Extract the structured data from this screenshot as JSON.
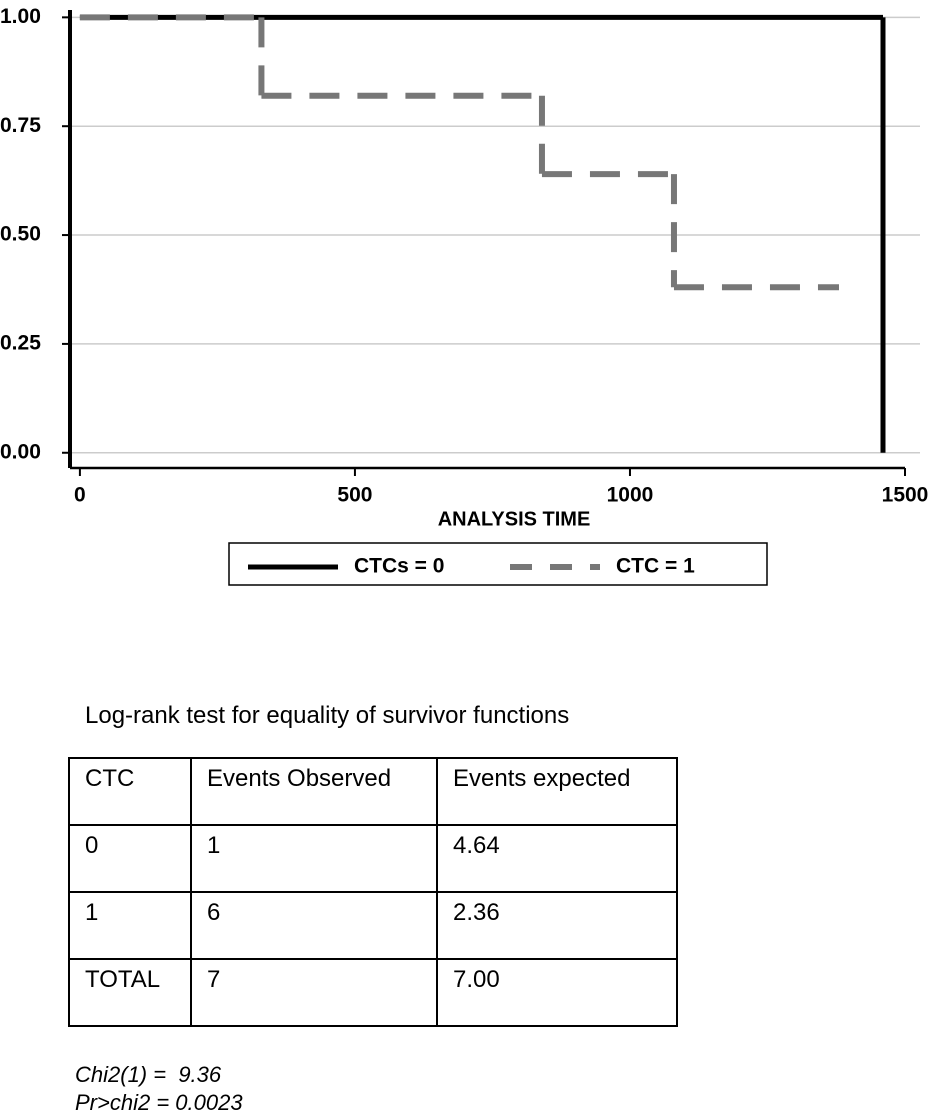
{
  "chart_data": {
    "type": "step",
    "x_label": "ANALYSIS TIME",
    "xlim": [
      -18,
      1500
    ],
    "xticks": [
      0,
      500,
      1000,
      1500
    ],
    "ylim": [
      -0.035,
      1.01
    ],
    "yticks": [
      {
        "value": 0,
        "label": "0.00"
      },
      {
        "value": 0.25,
        "label": "0.25"
      },
      {
        "value": 0.5,
        "label": "0.50"
      },
      {
        "value": 0.75,
        "label": "0.75"
      },
      {
        "value": 1,
        "label": "1.00"
      }
    ],
    "grid": true,
    "series": [
      {
        "name": "CTCs = 0",
        "color": "#000000",
        "line_style": "solid",
        "x": [
          0,
          1460
        ],
        "values": [
          1,
          0
        ]
      },
      {
        "name": "CTC = 1",
        "color": "#777777",
        "line_style": "dashed",
        "x": [
          0,
          330,
          840,
          1080,
          1380
        ],
        "values": [
          1,
          0.82,
          0.64,
          0.38,
          0.38
        ]
      }
    ]
  },
  "table": {
    "title": "Log-rank test for equality of survivor functions",
    "header": [
      "CTC",
      "Events Observed",
      "Events expected"
    ],
    "rows": [
      [
        "0",
        "1",
        "4.64"
      ],
      [
        "1",
        "6",
        "2.36"
      ],
      [
        "TOTAL",
        "7",
        "7.00"
      ]
    ]
  },
  "stats": [
    "Chi2(1) =  9.36",
    "Pr>chi2 = 0.0023"
  ]
}
